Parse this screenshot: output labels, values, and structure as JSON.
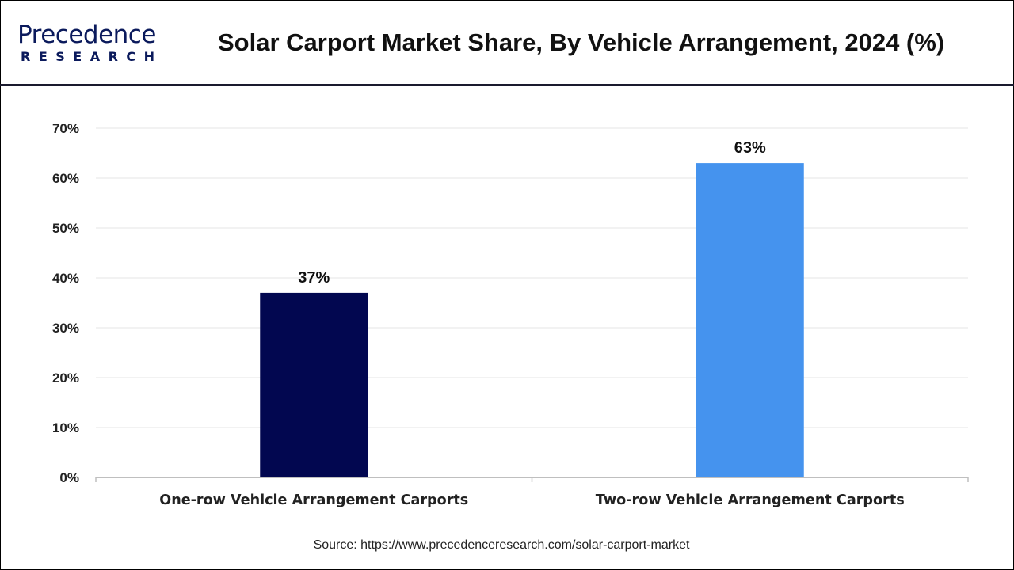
{
  "header": {
    "logo_text": "Precedence",
    "logo_sub": "RESEARCH",
    "title": "Solar Carport Market Share, By Vehicle Arrangement, 2024 (%)"
  },
  "chart_data": {
    "type": "bar",
    "title": "Solar Carport Market Share, By Vehicle Arrangement, 2024 (%)",
    "categories": [
      "One-row Vehicle Arrangement Carports",
      "Two-row Vehicle Arrangement Carports"
    ],
    "values": [
      37,
      63
    ],
    "data_labels": [
      "37%",
      "63%"
    ],
    "colors": [
      "#020750",
      "#4593ee"
    ],
    "ylim": [
      0,
      70
    ],
    "yticks": [
      0,
      10,
      20,
      30,
      40,
      50,
      60,
      70
    ],
    "ytick_labels": [
      "0%",
      "10%",
      "20%",
      "30%",
      "40%",
      "50%",
      "60%",
      "70%"
    ],
    "xlabel": "",
    "ylabel": "",
    "grid": true,
    "legend": "none"
  },
  "footer": {
    "source": "Source: https://www.precedenceresearch.com/solar-carport-market"
  }
}
